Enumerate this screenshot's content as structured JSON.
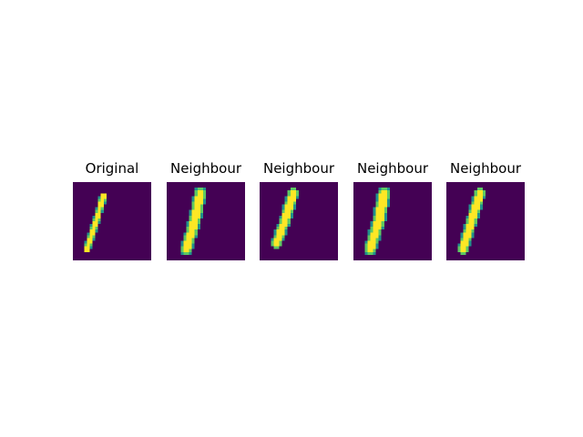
{
  "panels": [
    {
      "title": "Original",
      "cmap": {
        "bg": "#440154",
        "fg": "#fde725",
        "mid": "#21918c",
        "mid2": "#5ec962"
      },
      "stroke": [
        [
          11,
          5
        ],
        [
          8,
          15
        ],
        [
          5,
          24
        ]
      ],
      "stroke_width": 1.4
    },
    {
      "title": "Neighbour",
      "cmap": {
        "bg": "#440154",
        "fg": "#fde725",
        "mid": "#21918c",
        "mid2": "#5ec962"
      },
      "stroke": [
        [
          12,
          4
        ],
        [
          10,
          14
        ],
        [
          7,
          24
        ]
      ],
      "stroke_width": 2.4
    },
    {
      "title": "Neighbour",
      "cmap": {
        "bg": "#440154",
        "fg": "#fde725",
        "mid": "#21918c",
        "mid2": "#5ec962"
      },
      "stroke": [
        [
          12,
          4
        ],
        [
          9,
          14
        ],
        [
          6,
          22
        ]
      ],
      "stroke_width": 2.2
    },
    {
      "title": "Neighbour",
      "cmap": {
        "bg": "#440154",
        "fg": "#fde725",
        "mid": "#21918c",
        "mid2": "#5ec962"
      },
      "stroke": [
        [
          11,
          4
        ],
        [
          9,
          14
        ],
        [
          6,
          24
        ]
      ],
      "stroke_width": 2.5
    },
    {
      "title": "Neighbour",
      "cmap": {
        "bg": "#440154",
        "fg": "#fde725",
        "mid": "#21918c",
        "mid2": "#5ec962"
      },
      "stroke": [
        [
          12,
          4
        ],
        [
          9,
          14
        ],
        [
          6,
          24
        ]
      ],
      "stroke_width": 2.2
    }
  ]
}
